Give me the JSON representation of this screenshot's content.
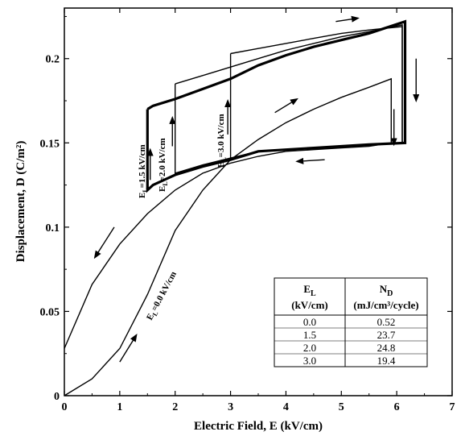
{
  "chart_data": {
    "type": "line",
    "xlabel": "Electric Field, E (kV/cm)",
    "ylabel": "Displacement, D (C/m²)",
    "xlim": [
      0,
      7
    ],
    "ylim": [
      0,
      0.23
    ],
    "xticks": [
      "0",
      "1",
      "2",
      "3",
      "4",
      "5",
      "6",
      "7"
    ],
    "yticks": [
      "0",
      "0.05",
      "0.1",
      "0.15",
      "0.2"
    ],
    "grid": false,
    "series": [
      {
        "name": "E_L=0.0 kV/cm",
        "label_main": "E",
        "label_sub": "L",
        "label_rest": "=0.0 kV/cm",
        "x": [
          0,
          0.5,
          1,
          1.5,
          2,
          2.5,
          3,
          3.5,
          4,
          4.5,
          5,
          5.5,
          5.9,
          5.9,
          5.5,
          5,
          4.5,
          4,
          3.5,
          3,
          2.5,
          2,
          1.5,
          1,
          0.5,
          0
        ],
        "y": [
          0,
          0.01,
          0.028,
          0.06,
          0.098,
          0.122,
          0.14,
          0.152,
          0.162,
          0.17,
          0.177,
          0.183,
          0.188,
          0.15,
          0.148,
          0.147,
          0.146,
          0.145,
          0.142,
          0.138,
          0.132,
          0.122,
          0.108,
          0.09,
          0.066,
          0.028
        ]
      },
      {
        "name": "E_L=1.5 kV/cm",
        "label_main": "E",
        "label_sub": "L",
        "label_rest": "=1.5 kV/cm",
        "x": [
          1.5,
          1.6,
          2.0,
          2.5,
          3.0,
          3.5,
          4,
          4.5,
          5,
          5.5,
          6.15,
          6.15,
          5.5,
          5,
          4.5,
          4,
          3.5,
          3,
          2.5,
          2,
          1.6,
          1.5,
          1.5
        ],
        "y": [
          0.17,
          0.172,
          0.176,
          0.182,
          0.188,
          0.196,
          0.202,
          0.207,
          0.211,
          0.215,
          0.222,
          0.15,
          0.149,
          0.148,
          0.147,
          0.146,
          0.145,
          0.14,
          0.136,
          0.131,
          0.125,
          0.122,
          0.17
        ]
      },
      {
        "name": "E_L=2.0 kV/cm",
        "label_main": "E",
        "label_sub": "L",
        "label_rest": "=2.0 kV/cm",
        "x": [
          2.0,
          2.5,
          3.0,
          3.5,
          4,
          4.5,
          5,
          5.5,
          6.1,
          6.1,
          5.5,
          5,
          4.5,
          4,
          3.5,
          3,
          2.5,
          2.0,
          2.0
        ],
        "y": [
          0.185,
          0.19,
          0.195,
          0.2,
          0.205,
          0.209,
          0.213,
          0.216,
          0.22,
          0.15,
          0.149,
          0.148,
          0.147,
          0.146,
          0.145,
          0.141,
          0.137,
          0.132,
          0.185
        ]
      },
      {
        "name": "E_L=3.0 kV/cm",
        "label_main": "E",
        "label_sub": "L",
        "label_rest": "=3.0 kV/cm",
        "x": [
          3.0,
          3.5,
          4,
          4.5,
          5,
          5.5,
          6.1,
          6.1,
          5.5,
          5,
          4.5,
          4,
          3.5,
          3.0,
          3.0
        ],
        "y": [
          0.203,
          0.206,
          0.209,
          0.212,
          0.215,
          0.217,
          0.219,
          0.15,
          0.149,
          0.148,
          0.147,
          0.146,
          0.145,
          0.14,
          0.203
        ]
      }
    ],
    "table": {
      "headers": [
        {
          "main": "E",
          "sub": "L",
          "line2": "(kV/cm)"
        },
        {
          "main": "N",
          "sub": "D",
          "line2": "(mJ/cm³/cycle)"
        }
      ],
      "rows": [
        [
          "0.0",
          "0.52"
        ],
        [
          "1.5",
          "23.7"
        ],
        [
          "2.0",
          "24.8"
        ],
        [
          "3.0",
          "19.4"
        ]
      ]
    }
  }
}
